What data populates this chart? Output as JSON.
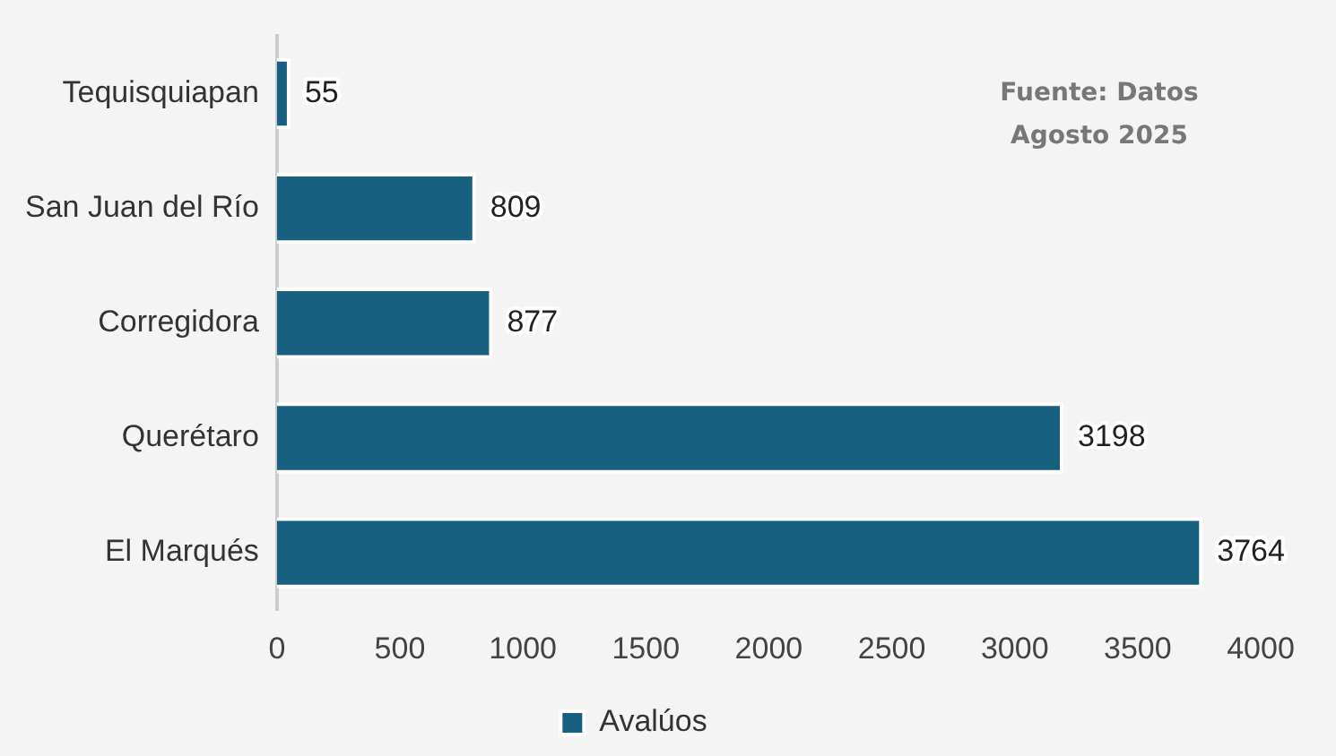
{
  "chart_data": {
    "type": "bar",
    "orientation": "horizontal",
    "categories": [
      "Tequisquiapan",
      "San Juan del Río",
      "Corregidora",
      "Querétaro",
      "El Marqués"
    ],
    "series": [
      {
        "name": "Avalúos",
        "color": "#17607f",
        "values": [
          55,
          809,
          877,
          3198,
          3764
        ]
      }
    ],
    "xlim": [
      0,
      4000
    ],
    "xticks": [
      0,
      500,
      1000,
      1500,
      2000,
      2500,
      3000,
      3500,
      4000
    ],
    "data_labels": true,
    "grid": false,
    "legend": "bottom",
    "annotations": [
      "Fuente: Datos\nAgosto 2025"
    ]
  }
}
